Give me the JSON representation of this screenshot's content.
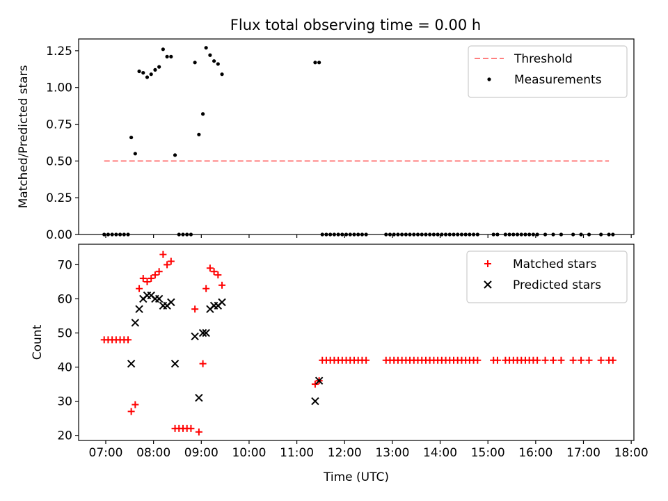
{
  "figure_title": "Flux total observing time = 0.00 h",
  "chart_data": [
    {
      "type": "scatter",
      "title": "Flux total observing time = 0.00 h",
      "xlabel": "",
      "ylabel": "Matched/Predicted stars",
      "xlim": [
        "06:55",
        "18:00"
      ],
      "ylim": [
        0,
        1.33
      ],
      "xticks": [
        "07:00",
        "08:00",
        "09:00",
        "10:00",
        "11:00",
        "12:00",
        "13:00",
        "14:00",
        "15:00",
        "16:00",
        "17:00",
        "18:00"
      ],
      "yticks": [
        "0.00",
        "0.25",
        "0.50",
        "0.75",
        "1.00",
        "1.25"
      ],
      "legend_position": "upper right",
      "series": [
        {
          "name": "Threshold",
          "style": "dashed-line",
          "color": "#ff7f7f",
          "points": [
            [
              "06:58",
              0.5
            ],
            [
              "17:32",
              0.5
            ]
          ]
        },
        {
          "name": "Measurements",
          "style": "dot",
          "color": "#000000",
          "points": [
            [
              "06:58",
              0
            ],
            [
              "07:03",
              0
            ],
            [
              "07:08",
              0
            ],
            [
              "07:13",
              0
            ],
            [
              "07:18",
              0
            ],
            [
              "07:23",
              0
            ],
            [
              "07:28",
              0
            ],
            [
              "07:32",
              0.66
            ],
            [
              "07:37",
              0.55
            ],
            [
              "07:42",
              1.11
            ],
            [
              "07:47",
              1.1
            ],
            [
              "07:52",
              1.07
            ],
            [
              "07:57",
              1.09
            ],
            [
              "08:02",
              1.12
            ],
            [
              "08:07",
              1.14
            ],
            [
              "08:12",
              1.26
            ],
            [
              "08:17",
              1.21
            ],
            [
              "08:22",
              1.21
            ],
            [
              "08:27",
              0.54
            ],
            [
              "08:32",
              0
            ],
            [
              "08:37",
              0
            ],
            [
              "08:42",
              0
            ],
            [
              "08:47",
              0
            ],
            [
              "08:52",
              1.17
            ],
            [
              "08:57",
              0.68
            ],
            [
              "09:02",
              0.82
            ],
            [
              "09:06",
              1.27
            ],
            [
              "09:11",
              1.22
            ],
            [
              "09:16",
              1.18
            ],
            [
              "09:21",
              1.16
            ],
            [
              "09:26",
              1.09
            ],
            [
              "11:23",
              1.17
            ],
            [
              "11:28",
              1.17
            ],
            [
              "11:32",
              0
            ],
            [
              "11:37",
              0
            ],
            [
              "11:42",
              0
            ],
            [
              "11:47",
              0
            ],
            [
              "11:52",
              0
            ],
            [
              "11:57",
              0
            ],
            [
              "12:02",
              0
            ],
            [
              "12:07",
              0
            ],
            [
              "12:12",
              0
            ],
            [
              "12:17",
              0
            ],
            [
              "12:22",
              0
            ],
            [
              "12:27",
              0
            ],
            [
              "12:52",
              0
            ],
            [
              "12:57",
              0
            ],
            [
              "13:02",
              0
            ],
            [
              "13:07",
              0
            ],
            [
              "13:12",
              0
            ],
            [
              "13:17",
              0
            ],
            [
              "13:22",
              0
            ],
            [
              "13:27",
              0
            ],
            [
              "13:32",
              0
            ],
            [
              "13:37",
              0
            ],
            [
              "13:42",
              0
            ],
            [
              "13:47",
              0
            ],
            [
              "13:52",
              0
            ],
            [
              "13:57",
              0
            ],
            [
              "14:02",
              0
            ],
            [
              "14:07",
              0
            ],
            [
              "14:12",
              0
            ],
            [
              "14:17",
              0
            ],
            [
              "14:22",
              0
            ],
            [
              "14:27",
              0
            ],
            [
              "14:32",
              0
            ],
            [
              "14:37",
              0
            ],
            [
              "14:42",
              0
            ],
            [
              "14:47",
              0
            ],
            [
              "15:07",
              0
            ],
            [
              "15:12",
              0
            ],
            [
              "15:22",
              0
            ],
            [
              "15:27",
              0
            ],
            [
              "15:32",
              0
            ],
            [
              "15:37",
              0
            ],
            [
              "15:42",
              0
            ],
            [
              "15:47",
              0
            ],
            [
              "15:52",
              0
            ],
            [
              "15:57",
              0
            ],
            [
              "16:02",
              0
            ],
            [
              "16:12",
              0
            ],
            [
              "16:22",
              0
            ],
            [
              "16:32",
              0
            ],
            [
              "16:47",
              0
            ],
            [
              "16:57",
              0
            ],
            [
              "17:07",
              0
            ],
            [
              "17:22",
              0
            ],
            [
              "17:32",
              0
            ],
            [
              "17:37",
              0
            ]
          ]
        }
      ]
    },
    {
      "type": "scatter",
      "title": "",
      "xlabel": "Time (UTC)",
      "ylabel": "Count",
      "xlim": [
        "06:55",
        "18:00"
      ],
      "ylim": [
        18.5,
        76
      ],
      "xticks": [
        "07:00",
        "08:00",
        "09:00",
        "10:00",
        "11:00",
        "12:00",
        "13:00",
        "14:00",
        "15:00",
        "16:00",
        "17:00",
        "18:00"
      ],
      "yticks": [
        "20",
        "30",
        "40",
        "50",
        "60",
        "70"
      ],
      "legend_position": "upper right",
      "series": [
        {
          "name": "Matched stars",
          "style": "plus",
          "color": "#ff0000",
          "points": [
            [
              "06:58",
              48
            ],
            [
              "07:03",
              48
            ],
            [
              "07:08",
              48
            ],
            [
              "07:13",
              48
            ],
            [
              "07:18",
              48
            ],
            [
              "07:23",
              48
            ],
            [
              "07:28",
              48
            ],
            [
              "07:32",
              27
            ],
            [
              "07:37",
              29
            ],
            [
              "07:42",
              63
            ],
            [
              "07:47",
              66
            ],
            [
              "07:52",
              65
            ],
            [
              "07:57",
              66
            ],
            [
              "08:02",
              67
            ],
            [
              "08:07",
              68
            ],
            [
              "08:12",
              73
            ],
            [
              "08:17",
              70
            ],
            [
              "08:22",
              71
            ],
            [
              "08:27",
              22
            ],
            [
              "08:32",
              22
            ],
            [
              "08:37",
              22
            ],
            [
              "08:42",
              22
            ],
            [
              "08:47",
              22
            ],
            [
              "08:52",
              57
            ],
            [
              "08:57",
              21
            ],
            [
              "09:02",
              41
            ],
            [
              "09:06",
              63
            ],
            [
              "09:11",
              69
            ],
            [
              "09:16",
              68
            ],
            [
              "09:21",
              67
            ],
            [
              "09:26",
              64
            ],
            [
              "11:23",
              35
            ],
            [
              "11:28",
              36
            ],
            [
              "11:32",
              42
            ],
            [
              "11:37",
              42
            ],
            [
              "11:42",
              42
            ],
            [
              "11:47",
              42
            ],
            [
              "11:52",
              42
            ],
            [
              "11:57",
              42
            ],
            [
              "12:02",
              42
            ],
            [
              "12:07",
              42
            ],
            [
              "12:12",
              42
            ],
            [
              "12:17",
              42
            ],
            [
              "12:22",
              42
            ],
            [
              "12:27",
              42
            ],
            [
              "12:52",
              42
            ],
            [
              "12:57",
              42
            ],
            [
              "13:02",
              42
            ],
            [
              "13:07",
              42
            ],
            [
              "13:12",
              42
            ],
            [
              "13:17",
              42
            ],
            [
              "13:22",
              42
            ],
            [
              "13:27",
              42
            ],
            [
              "13:32",
              42
            ],
            [
              "13:37",
              42
            ],
            [
              "13:42",
              42
            ],
            [
              "13:47",
              42
            ],
            [
              "13:52",
              42
            ],
            [
              "13:57",
              42
            ],
            [
              "14:02",
              42
            ],
            [
              "14:07",
              42
            ],
            [
              "14:12",
              42
            ],
            [
              "14:17",
              42
            ],
            [
              "14:22",
              42
            ],
            [
              "14:27",
              42
            ],
            [
              "14:32",
              42
            ],
            [
              "14:37",
              42
            ],
            [
              "14:42",
              42
            ],
            [
              "14:47",
              42
            ],
            [
              "15:07",
              42
            ],
            [
              "15:12",
              42
            ],
            [
              "15:22",
              42
            ],
            [
              "15:27",
              42
            ],
            [
              "15:32",
              42
            ],
            [
              "15:37",
              42
            ],
            [
              "15:42",
              42
            ],
            [
              "15:47",
              42
            ],
            [
              "15:52",
              42
            ],
            [
              "15:57",
              42
            ],
            [
              "16:02",
              42
            ],
            [
              "16:12",
              42
            ],
            [
              "16:22",
              42
            ],
            [
              "16:32",
              42
            ],
            [
              "16:47",
              42
            ],
            [
              "16:57",
              42
            ],
            [
              "17:07",
              42
            ],
            [
              "17:22",
              42
            ],
            [
              "17:32",
              42
            ],
            [
              "17:37",
              42
            ]
          ]
        },
        {
          "name": "Predicted stars",
          "style": "x",
          "color": "#000000",
          "points": [
            [
              "07:32",
              41
            ],
            [
              "07:37",
              53
            ],
            [
              "07:42",
              57
            ],
            [
              "07:47",
              60
            ],
            [
              "07:52",
              61
            ],
            [
              "07:57",
              61
            ],
            [
              "08:02",
              60
            ],
            [
              "08:07",
              60
            ],
            [
              "08:12",
              58
            ],
            [
              "08:17",
              58
            ],
            [
              "08:22",
              59
            ],
            [
              "08:27",
              41
            ],
            [
              "08:52",
              49
            ],
            [
              "08:57",
              31
            ],
            [
              "09:02",
              50
            ],
            [
              "09:06",
              50
            ],
            [
              "09:11",
              57
            ],
            [
              "09:16",
              58
            ],
            [
              "09:21",
              58
            ],
            [
              "09:26",
              59
            ],
            [
              "11:23",
              30
            ],
            [
              "11:28",
              36
            ]
          ]
        }
      ]
    }
  ]
}
